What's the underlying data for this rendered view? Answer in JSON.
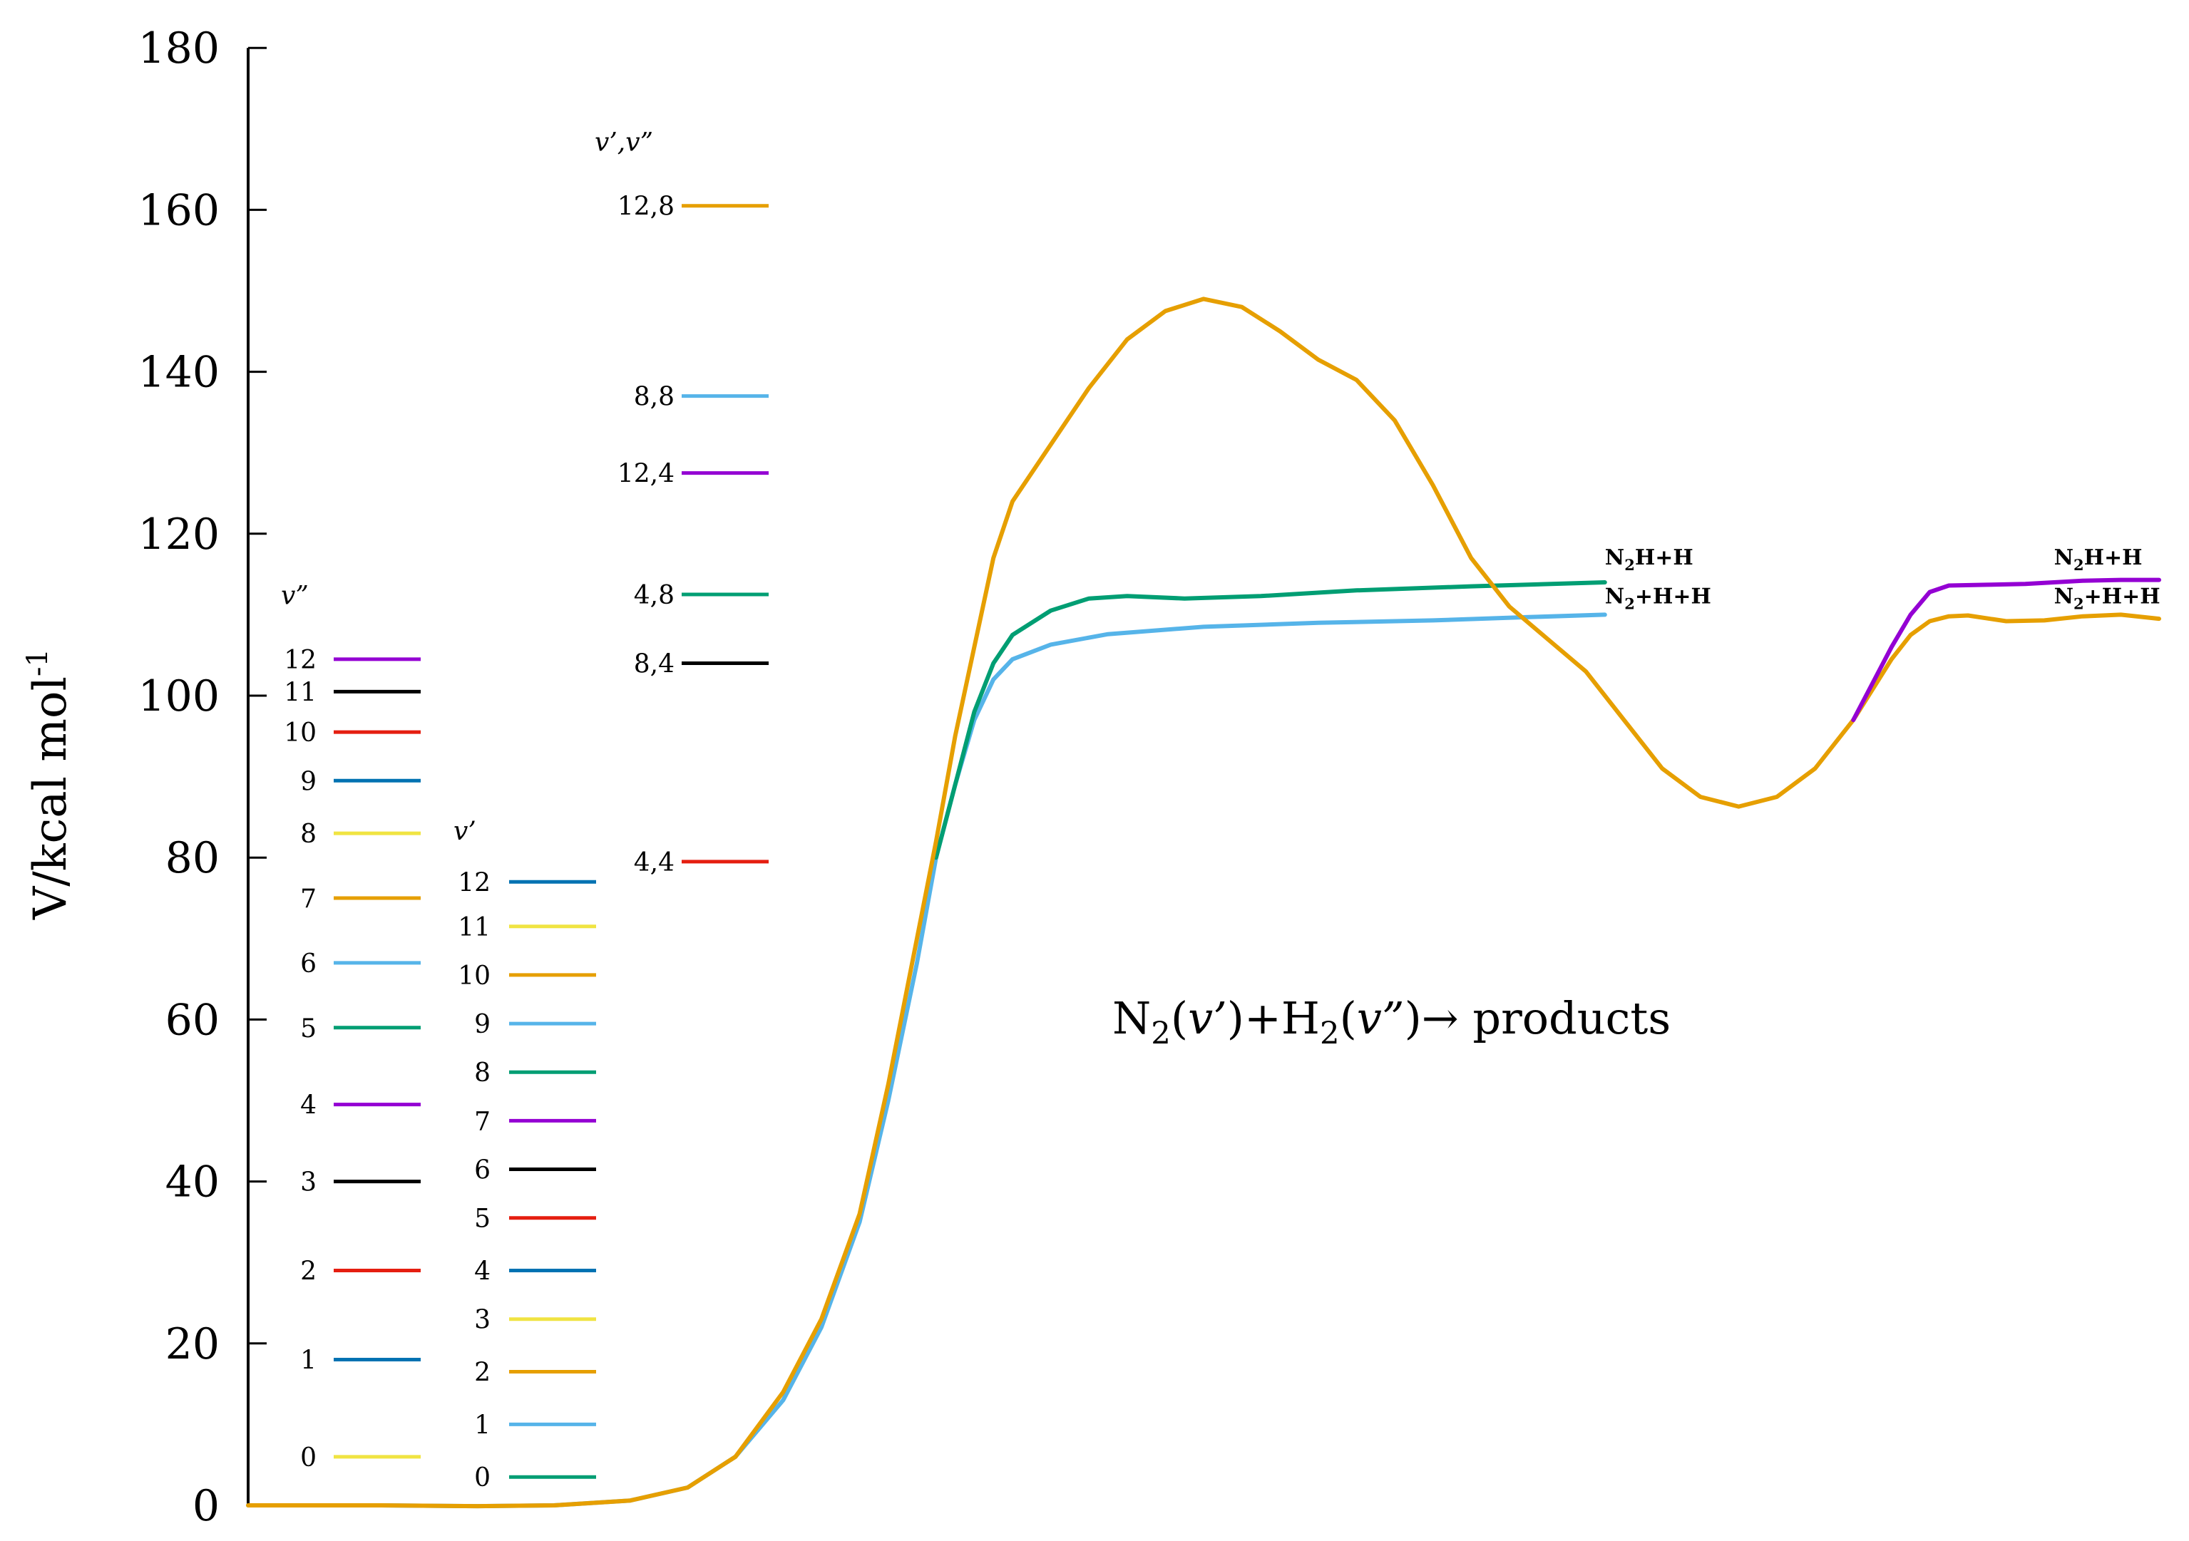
{
  "chart_data": {
    "type": "line",
    "ylabel": "V/kcal mol",
    "ylabel_sup": "-1",
    "ylim": [
      0,
      180
    ],
    "yticks": [
      0,
      20,
      40,
      60,
      80,
      100,
      120,
      140,
      160,
      180
    ],
    "xlim": [
      0,
      1
    ],
    "grid": false,
    "colors": {
      "yellow": "#f0e442",
      "blue": "#0072b2",
      "red": "#e51e10",
      "black": "#000000",
      "purple": "#9400d3",
      "green": "#009e73",
      "skyblue": "#56b4e9",
      "orange": "#e69f00"
    },
    "series": [
      {
        "color": "#56b4e9",
        "points": [
          [
            0,
            0
          ],
          [
            0.07,
            0
          ],
          [
            0.12,
            -0.1
          ],
          [
            0.16,
            0
          ],
          [
            0.2,
            0.6
          ],
          [
            0.23,
            2.2
          ],
          [
            0.255,
            6
          ],
          [
            0.28,
            13
          ],
          [
            0.3,
            22
          ],
          [
            0.32,
            35
          ],
          [
            0.335,
            50
          ],
          [
            0.35,
            67
          ],
          [
            0.36,
            80
          ],
          [
            0.37,
            89
          ],
          [
            0.38,
            97
          ],
          [
            0.39,
            102
          ],
          [
            0.4,
            104.5
          ],
          [
            0.42,
            106.3
          ],
          [
            0.45,
            107.6
          ],
          [
            0.5,
            108.5
          ],
          [
            0.56,
            109
          ],
          [
            0.62,
            109.3
          ],
          [
            0.67,
            109.7
          ],
          [
            0.71,
            110
          ]
        ]
      },
      {
        "color": "#009e73",
        "points": [
          [
            0.36,
            80
          ],
          [
            0.37,
            89
          ],
          [
            0.38,
            98
          ],
          [
            0.39,
            104
          ],
          [
            0.4,
            107.5
          ],
          [
            0.42,
            110.5
          ],
          [
            0.44,
            112
          ],
          [
            0.46,
            112.3
          ],
          [
            0.49,
            112
          ],
          [
            0.53,
            112.3
          ],
          [
            0.58,
            113
          ],
          [
            0.64,
            113.5
          ],
          [
            0.71,
            114
          ]
        ]
      },
      {
        "color": "#e69f00",
        "points": [
          [
            0,
            0
          ],
          [
            0.07,
            0
          ],
          [
            0.12,
            -0.1
          ],
          [
            0.16,
            0
          ],
          [
            0.2,
            0.6
          ],
          [
            0.23,
            2.2
          ],
          [
            0.255,
            6
          ],
          [
            0.28,
            14
          ],
          [
            0.3,
            23
          ],
          [
            0.32,
            36
          ],
          [
            0.335,
            52
          ],
          [
            0.35,
            70
          ],
          [
            0.36,
            82
          ],
          [
            0.37,
            95
          ],
          [
            0.38,
            106
          ],
          [
            0.39,
            117
          ],
          [
            0.4,
            124
          ],
          [
            0.42,
            131
          ],
          [
            0.44,
            138
          ],
          [
            0.46,
            144
          ],
          [
            0.48,
            147.5
          ],
          [
            0.5,
            149
          ],
          [
            0.52,
            148
          ],
          [
            0.54,
            145
          ],
          [
            0.56,
            141.5
          ],
          [
            0.58,
            139
          ],
          [
            0.6,
            134
          ],
          [
            0.62,
            126
          ],
          [
            0.64,
            117
          ],
          [
            0.66,
            111
          ],
          [
            0.68,
            107
          ],
          [
            0.7,
            103
          ],
          [
            0.72,
            97
          ],
          [
            0.74,
            91
          ],
          [
            0.76,
            87.5
          ],
          [
            0.78,
            86.3
          ],
          [
            0.8,
            87.5
          ],
          [
            0.82,
            91
          ],
          [
            0.84,
            97
          ],
          [
            0.86,
            104.5
          ],
          [
            0.87,
            107.5
          ],
          [
            0.88,
            109.2
          ],
          [
            0.89,
            109.8
          ],
          [
            0.9,
            109.9
          ],
          [
            0.92,
            109.2
          ],
          [
            0.94,
            109.3
          ],
          [
            0.96,
            109.8
          ],
          [
            0.98,
            110
          ],
          [
            1.0,
            109.5
          ]
        ]
      },
      {
        "color": "#9400d3",
        "points": [
          [
            0.84,
            97
          ],
          [
            0.86,
            106
          ],
          [
            0.87,
            110
          ],
          [
            0.88,
            112.8
          ],
          [
            0.89,
            113.6
          ],
          [
            0.91,
            113.7
          ],
          [
            0.93,
            113.8
          ],
          [
            0.96,
            114.2
          ],
          [
            0.98,
            114.3
          ],
          [
            1.0,
            114.3
          ]
        ]
      }
    ],
    "v2_levels": {
      "header": "v”",
      "items": [
        {
          "label": "0",
          "energy": 6,
          "color": "#f0e442"
        },
        {
          "label": "1",
          "energy": 18,
          "color": "#0072b2"
        },
        {
          "label": "2",
          "energy": 29,
          "color": "#e51e10"
        },
        {
          "label": "3",
          "energy": 40,
          "color": "#000000"
        },
        {
          "label": "4",
          "energy": 49.5,
          "color": "#9400d3"
        },
        {
          "label": "5",
          "energy": 59,
          "color": "#009e73"
        },
        {
          "label": "6",
          "energy": 67,
          "color": "#56b4e9"
        },
        {
          "label": "7",
          "energy": 75,
          "color": "#e69f00"
        },
        {
          "label": "8",
          "energy": 83,
          "color": "#f0e442"
        },
        {
          "label": "9",
          "energy": 89.5,
          "color": "#0072b2"
        },
        {
          "label": "10",
          "energy": 95.5,
          "color": "#e51e10"
        },
        {
          "label": "11",
          "energy": 100.5,
          "color": "#000000"
        },
        {
          "label": "12",
          "energy": 104.5,
          "color": "#9400d3"
        }
      ]
    },
    "v1_levels": {
      "header": "v’",
      "items": [
        {
          "label": "0",
          "energy": 3.5,
          "color": "#009e73"
        },
        {
          "label": "1",
          "energy": 10,
          "color": "#56b4e9"
        },
        {
          "label": "2",
          "energy": 16.5,
          "color": "#e69f00"
        },
        {
          "label": "3",
          "energy": 23,
          "color": "#f0e442"
        },
        {
          "label": "4",
          "energy": 29,
          "color": "#0072b2"
        },
        {
          "label": "5",
          "energy": 35.5,
          "color": "#e51e10"
        },
        {
          "label": "6",
          "energy": 41.5,
          "color": "#000000"
        },
        {
          "label": "7",
          "energy": 47.5,
          "color": "#9400d3"
        },
        {
          "label": "8",
          "energy": 53.5,
          "color": "#009e73"
        },
        {
          "label": "9",
          "energy": 59.5,
          "color": "#56b4e9"
        },
        {
          "label": "10",
          "energy": 65.5,
          "color": "#e69f00"
        },
        {
          "label": "11",
          "energy": 71.5,
          "color": "#f0e442"
        },
        {
          "label": "12",
          "energy": 77,
          "color": "#0072b2"
        }
      ]
    },
    "combined_levels": {
      "header": "v’,v”",
      "items": [
        {
          "label": "4,4",
          "energy": 79.5,
          "color": "#e51e10"
        },
        {
          "label": "8,4",
          "energy": 104,
          "color": "#000000"
        },
        {
          "label": "4,8",
          "energy": 112.5,
          "color": "#009e73"
        },
        {
          "label": "12,4",
          "energy": 127.5,
          "color": "#9400d3"
        },
        {
          "label": "8,8",
          "energy": 137,
          "color": "#56b4e9"
        },
        {
          "label": "12,8",
          "energy": 160.5,
          "color": "#e69f00"
        }
      ]
    },
    "annotations": {
      "product_labels": [
        {
          "main": "N",
          "sub": "2",
          "rest": "H+H",
          "x": 0.71,
          "energy": 116.2
        },
        {
          "main": "N",
          "sub": "2",
          "rest": "+H+H",
          "x": 0.71,
          "energy": 111.4
        },
        {
          "main": "N",
          "sub": "2",
          "rest": "H+H",
          "x": 0.945,
          "energy": 116.2
        },
        {
          "main": "N",
          "sub": "2",
          "rest": "+H+H",
          "x": 0.945,
          "energy": 111.4
        }
      ],
      "reaction": {
        "n2": "N",
        "n2_sub": "2",
        "v1": "v’",
        "plus_h": ")+H",
        "h2_sub": "2",
        "v2": "v”",
        "tail": ")→ products"
      }
    }
  }
}
